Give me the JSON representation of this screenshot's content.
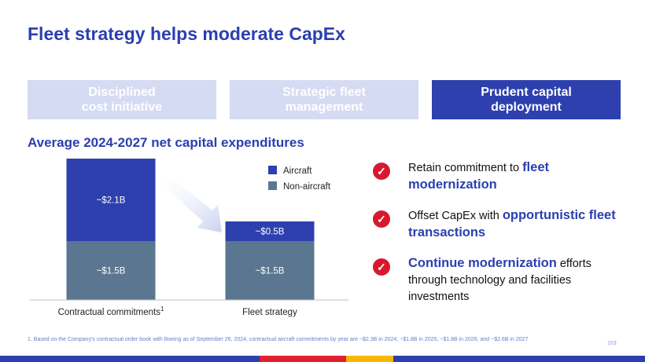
{
  "page": {
    "title": "Fleet strategy helps moderate CapEx",
    "subtitle": "Average 2024-2027 net capital expenditures",
    "page_number": "103"
  },
  "tabs": [
    {
      "line1": "Disciplined",
      "line2": "cost initiative",
      "active": false
    },
    {
      "line1": "Strategic fleet",
      "line2": "management",
      "active": false
    },
    {
      "line1": "Prudent capital",
      "line2": "deployment",
      "active": true
    }
  ],
  "chart_data": {
    "type": "bar",
    "stacked": true,
    "categories": [
      "Contractual commitments",
      "Fleet strategy"
    ],
    "category_superscripts": [
      "1",
      ""
    ],
    "series": [
      {
        "name": "Non-aircraft",
        "values": [
          1.5,
          1.5
        ],
        "labels": [
          "~$1.5B",
          "~$1.5B"
        ],
        "color": "#5b7690"
      },
      {
        "name": "Aircraft",
        "values": [
          2.1,
          0.5
        ],
        "labels": [
          "~$2.1B",
          "~$0.5B"
        ],
        "color": "#2d40ad"
      }
    ],
    "legend": [
      "Aircraft",
      "Non-aircraft"
    ],
    "ylim": [
      0,
      3.6
    ],
    "units": "$B"
  },
  "bullets": [
    {
      "pre": "Retain commitment to ",
      "highlight": "fleet modernization",
      "post": ""
    },
    {
      "pre": "Offset CapEx with ",
      "highlight": "opportunistic fleet transactions",
      "post": ""
    },
    {
      "pre": "",
      "highlight": "Continue modernization",
      "post": " efforts through technology and facilities investments"
    }
  ],
  "footnote": "1.   Based on the Company's contractual order book with Boeing as of September 26, 2024, contractual aircraft commitments by year are ~$2.3B in 2024, ~$1.8B in 2025, ~$1.8B in 2026, and ~$2.6B in 2027",
  "colors": {
    "brand_blue": "#2b3fb0",
    "check_red": "#d7192f",
    "stripe": [
      "#2d40ad",
      "#e0202f",
      "#f5b800",
      "#2d40ad"
    ]
  }
}
